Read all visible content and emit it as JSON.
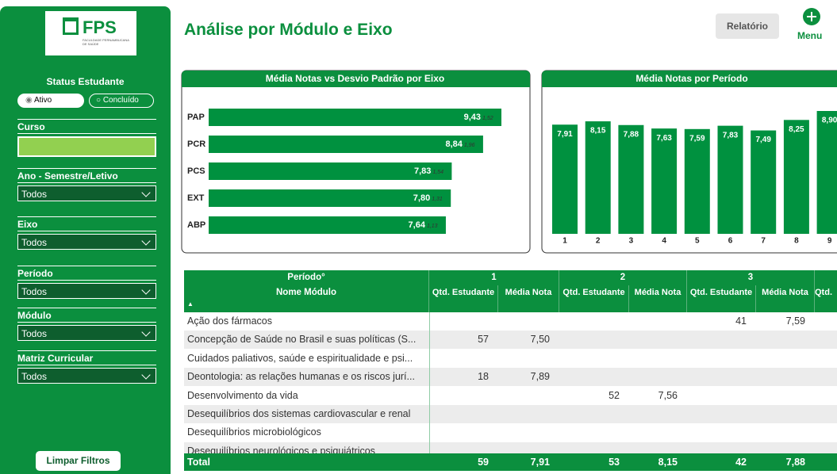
{
  "sidebar": {
    "logo": {
      "name": "FPS",
      "subtitle": "FACULDADE PERNAMBUCANA DE SAÚDE"
    },
    "status_label": "Status Estudante",
    "status_options": [
      "Ativo",
      "Concluído"
    ],
    "filters": [
      {
        "label": "Curso"
      },
      {
        "label": "Ano - Semestre/Letivo",
        "value": "Todos"
      },
      {
        "label": "Eixo",
        "value": "Todos"
      },
      {
        "label": "Período",
        "value": "Todos"
      },
      {
        "label": "Módulo",
        "value": "Todos"
      },
      {
        "label": "Matriz Curricular",
        "value": "Todos"
      }
    ],
    "clear_button": "Limpar Filtros"
  },
  "header": {
    "title": "Análise por Módulo e Eixo",
    "report_button": "Relatório",
    "menu": "Menu"
  },
  "chart_data": [
    {
      "type": "bar",
      "orientation": "horizontal",
      "title": "Média Notas vs Desvio Padrão por Eixo",
      "categories": [
        "PAP",
        "PCR",
        "PCS",
        "EXT",
        "ABP"
      ],
      "values": [
        9.43,
        8.84,
        7.83,
        7.8,
        7.64
      ],
      "value_labels": [
        "9,43",
        "8,84",
        "7,83",
        "7,80",
        "7,64"
      ],
      "std_dev": [
        1.52,
        1.96,
        1.54,
        1.31,
        1.13
      ],
      "std_dev_labels": [
        "1,52",
        "1,96",
        "1,54",
        "1,31",
        "1,13"
      ],
      "color": "#00913f"
    },
    {
      "type": "bar",
      "orientation": "vertical",
      "title": "Média Notas por Período",
      "categories": [
        "1",
        "2",
        "3",
        "4",
        "5",
        "6",
        "7",
        "8",
        "9"
      ],
      "values": [
        7.91,
        8.15,
        7.88,
        7.63,
        7.59,
        7.83,
        7.49,
        8.25,
        8.9
      ],
      "value_labels": [
        "7,91",
        "8,15",
        "7,88",
        "7,63",
        "7,59",
        "7,83",
        "7,49",
        "8,25",
        "8,90"
      ],
      "color": "#00913f"
    }
  ],
  "table": {
    "period_header": "Período°",
    "periods": [
      "1",
      "2",
      "3"
    ],
    "truncated_column": "Qtd.",
    "column_header": "Nome Módulo",
    "subcolumns": [
      "Qtd. Estudante",
      "Média Nota"
    ],
    "rows": [
      {
        "name": "Ação dos fármacos",
        "cells": [
          null,
          null,
          null,
          null,
          "41",
          "7,59"
        ]
      },
      {
        "name": "Concepção de Saúde no Brasil e suas políticas (S...",
        "cells": [
          "57",
          "7,50",
          null,
          null,
          null,
          null
        ]
      },
      {
        "name": "Cuidados paliativos, saúde e espiritualidade e psi...",
        "cells": [
          null,
          null,
          null,
          null,
          null,
          null
        ]
      },
      {
        "name": "Deontologia: as relações humanas e os riscos jurí...",
        "cells": [
          "18",
          "7,89",
          null,
          null,
          null,
          null
        ]
      },
      {
        "name": "Desenvolvimento da vida",
        "cells": [
          null,
          null,
          "52",
          "7,56",
          null,
          null
        ]
      },
      {
        "name": "Desequilíbrios dos sistemas cardiovascular e renal",
        "cells": [
          null,
          null,
          null,
          null,
          null,
          null
        ]
      },
      {
        "name": "Desequilíbrios microbiológicos",
        "cells": [
          null,
          null,
          null,
          null,
          null,
          null
        ]
      },
      {
        "name": "Desequilíbrios neurológicos e psiquiátricos",
        "cells": [
          null,
          null,
          null,
          null,
          null,
          null
        ]
      }
    ],
    "total": {
      "label": "Total",
      "cells": [
        "59",
        "7,91",
        "53",
        "8,15",
        "42",
        "7,88"
      ]
    }
  }
}
